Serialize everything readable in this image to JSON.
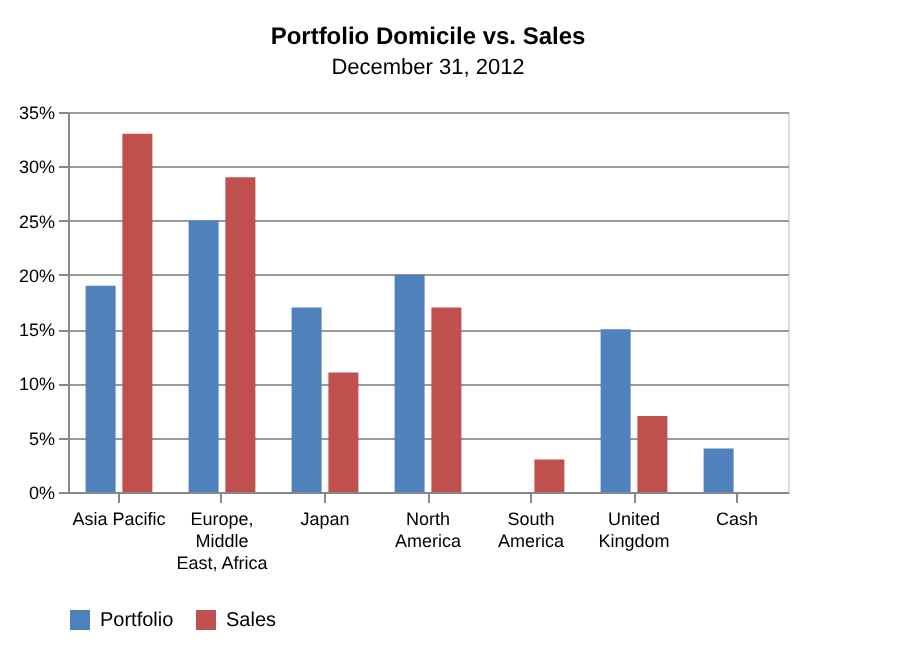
{
  "chart_data": {
    "type": "bar",
    "title": "Portfolio Domicile vs. Sales",
    "subtitle": "December 31, 2012",
    "categories": [
      "Asia Pacific",
      "Europe,\nMiddle\nEast, Africa",
      "Japan",
      "North\nAmerica",
      "South\nAmerica",
      "United\nKingdom",
      "Cash"
    ],
    "series": [
      {
        "name": "Portfolio",
        "color": "#4f81bd",
        "values": [
          19,
          25,
          17,
          20,
          0,
          15,
          4
        ]
      },
      {
        "name": "Sales",
        "color": "#c0504d",
        "values": [
          33,
          29,
          11,
          17,
          3,
          7,
          0
        ]
      }
    ],
    "ylim": [
      0,
      35
    ],
    "yticks": [
      {
        "value": 0,
        "label": "0%"
      },
      {
        "value": 5,
        "label": "5%"
      },
      {
        "value": 10,
        "label": "10%"
      },
      {
        "value": 15,
        "label": "15%"
      },
      {
        "value": 20,
        "label": "20%"
      },
      {
        "value": 25,
        "label": "25%"
      },
      {
        "value": 30,
        "label": "30%"
      },
      {
        "value": 35,
        "label": "35%"
      }
    ],
    "grid": "y",
    "legend": "bottom"
  }
}
